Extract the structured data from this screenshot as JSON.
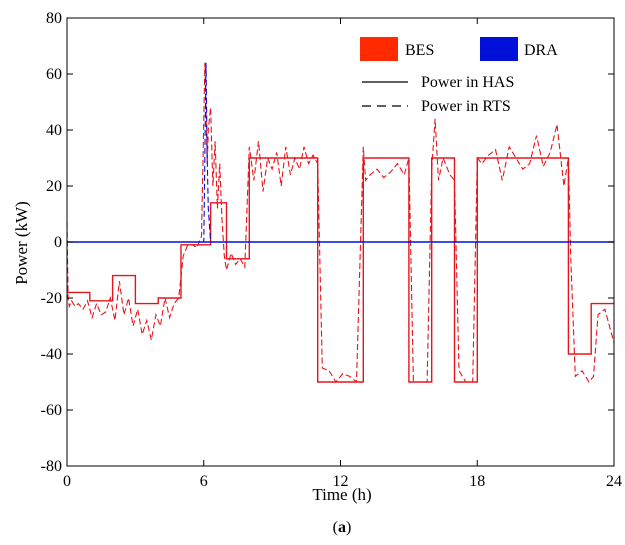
{
  "caption": {
    "open": "(",
    "letter": "a",
    "close": ")"
  },
  "chart_data": {
    "type": "line",
    "xlabel": "Time (h)",
    "ylabel": "Power (kW)",
    "xlim": [
      0,
      24
    ],
    "ylim": [
      -80,
      80
    ],
    "xticks": [
      0,
      6,
      12,
      18,
      24
    ],
    "yticks": [
      -80,
      -60,
      -40,
      -20,
      0,
      20,
      40,
      60,
      80
    ],
    "grid": false,
    "legend_position": "top-right",
    "legend": {
      "devices": [
        {
          "name": "BES",
          "color": "#ff2a00"
        },
        {
          "name": "DRA",
          "color": "#0010d8"
        }
      ],
      "styles": [
        {
          "name": "Power in HAS",
          "dash": "solid"
        },
        {
          "name": "Power in RTS",
          "dash": "dashed"
        }
      ]
    },
    "series": [
      {
        "name": "BES",
        "style": "Power in HAS",
        "color": "#e8141c",
        "x": [
          0,
          0.01,
          1,
          2,
          3,
          4,
          5,
          5.5,
          6,
          6.3,
          7,
          8,
          11,
          13,
          15,
          16,
          17,
          18,
          22,
          23,
          24
        ],
        "values": [
          -18,
          -18,
          -21,
          -12,
          -22,
          -20,
          -1,
          -1,
          -1,
          14,
          -6,
          30,
          -50,
          30,
          -50,
          30,
          -50,
          30,
          -40,
          -22,
          -22
        ],
        "step": true
      },
      {
        "name": "BES",
        "style": "Power in RTS",
        "color": "#e8141c",
        "x": [
          0,
          0.05,
          0.1,
          0.2,
          0.35,
          0.5,
          0.7,
          0.9,
          1.1,
          1.3,
          1.5,
          1.7,
          1.9,
          2.1,
          2.3,
          2.5,
          2.7,
          2.9,
          3.1,
          3.3,
          3.5,
          3.7,
          3.9,
          4.1,
          4.3,
          4.5,
          4.7,
          4.9,
          5.1,
          5.3,
          5.5,
          5.7,
          5.9,
          6.05,
          6.15,
          6.2,
          6.3,
          6.4,
          6.5,
          6.6,
          6.7,
          6.8,
          6.9,
          7.0,
          7.2,
          7.4,
          7.6,
          7.8,
          8.0,
          8.2,
          8.4,
          8.6,
          8.8,
          9.0,
          9.2,
          9.4,
          9.6,
          9.8,
          10.0,
          10.2,
          10.4,
          10.6,
          10.8,
          11.0,
          11.2,
          11.5,
          11.8,
          12.1,
          12.4,
          12.7,
          13.0,
          13.1,
          13.3,
          13.6,
          13.9,
          14.2,
          14.5,
          14.8,
          15.0,
          15.2,
          15.5,
          15.8,
          16.0,
          16.15,
          16.3,
          16.5,
          16.8,
          17.0,
          17.2,
          17.5,
          17.8,
          18.0,
          18.2,
          18.5,
          18.8,
          19.1,
          19.4,
          19.7,
          20.0,
          20.3,
          20.6,
          20.9,
          21.2,
          21.5,
          21.8,
          22.0,
          22.1,
          22.3,
          22.6,
          22.9,
          23.1,
          23.3,
          23.6,
          23.8,
          24.0
        ],
        "values": [
          7,
          -20,
          -23,
          -21,
          -23,
          -22,
          -24,
          -21,
          -27,
          -22,
          -26,
          -25,
          -20,
          -28,
          -14,
          -26,
          -20,
          -30,
          -24,
          -33,
          -28,
          -35,
          -26,
          -30,
          -20,
          -27,
          -22,
          -20,
          -5,
          -1,
          -1,
          -2,
          2,
          64,
          28,
          40,
          48,
          20,
          36,
          12,
          28,
          8,
          -5,
          -10,
          -4,
          -8,
          -6,
          -9,
          34,
          22,
          36,
          18,
          30,
          26,
          32,
          20,
          34,
          24,
          30,
          26,
          34,
          28,
          31,
          28,
          -45,
          -46,
          -50,
          -47,
          -48,
          -50,
          34,
          22,
          24,
          26,
          23,
          25,
          28,
          24,
          30,
          -50,
          -50,
          -50,
          26,
          44,
          22,
          30,
          24,
          22,
          -46,
          -50,
          -50,
          30,
          28,
          31,
          33,
          22,
          34,
          30,
          26,
          28,
          38,
          27,
          32,
          42,
          20,
          30,
          -5,
          -48,
          -46,
          -50,
          -48,
          -26,
          -24,
          -30,
          -36
        ],
        "step": false
      },
      {
        "name": "DRA",
        "style": "Power in HAS",
        "color": "#0010d8",
        "x": [
          0,
          24
        ],
        "values": [
          0,
          0
        ],
        "step": false
      },
      {
        "name": "DRA",
        "style": "Power in RTS",
        "color": "#0010d8",
        "x": [
          0,
          5.9,
          6.0,
          6.1,
          6.15,
          6.2,
          6.3,
          6.5,
          24
        ],
        "values": [
          0,
          0,
          0,
          64,
          30,
          12,
          0,
          0,
          0
        ],
        "step": false
      }
    ]
  }
}
